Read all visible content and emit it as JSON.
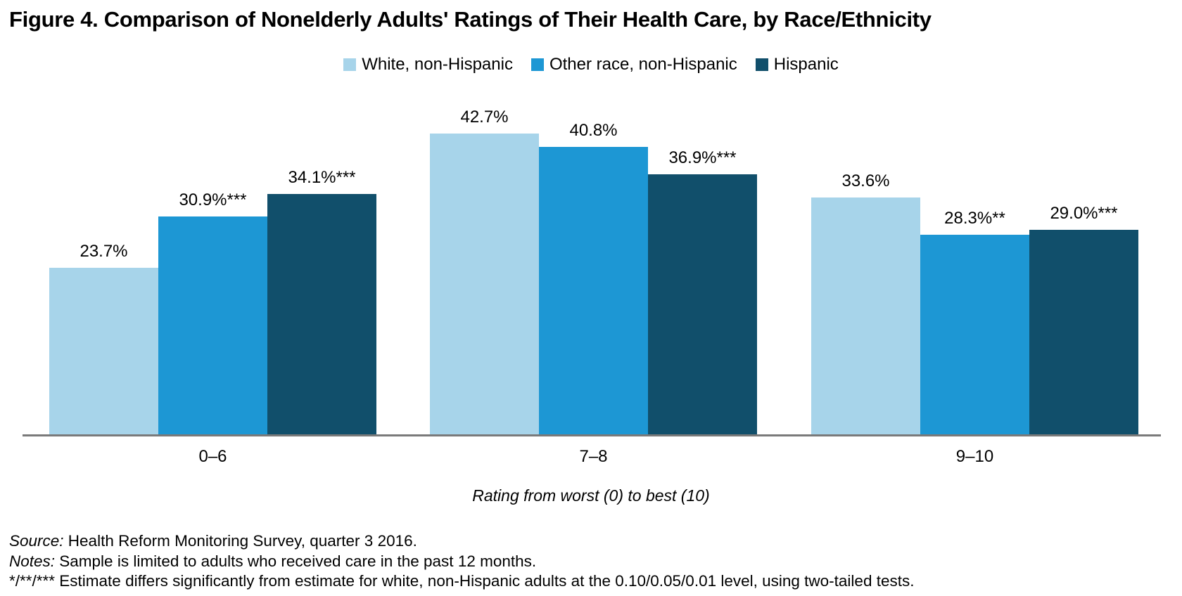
{
  "title": "Figure 4. Comparison of Nonelderly Adults' Ratings of Their Health Care, by Race/Ethnicity",
  "chart_data": {
    "type": "bar",
    "title": "Figure 4. Comparison of Nonelderly Adults' Ratings of Their Health Care, by Race/Ethnicity",
    "categories": [
      "0–6",
      "7–8",
      "9–10"
    ],
    "series": [
      {
        "name": "White, non-Hispanic",
        "color": "#a7d4ea",
        "values": [
          23.7,
          42.7,
          33.6
        ],
        "labels": [
          "23.7%",
          "42.7%",
          "33.6%"
        ]
      },
      {
        "name": "Other race, non-Hispanic",
        "color": "#1d97d4",
        "values": [
          30.9,
          40.8,
          28.3
        ],
        "labels": [
          "30.9%***",
          "40.8%",
          "28.3%**"
        ]
      },
      {
        "name": "Hispanic",
        "color": "#114f6b",
        "values": [
          34.1,
          36.9,
          29.0
        ],
        "labels": [
          "34.1%***",
          "36.9%***",
          "29.0%***"
        ]
      }
    ],
    "xlabel": "Rating from worst (0) to best (10)",
    "ylabel": "",
    "ylim": [
      0,
      50
    ],
    "grid": false,
    "legend_position": "top",
    "axis_line_color": "#7a7a7a",
    "data_labels_shown": true
  },
  "notes": {
    "source_label": "Source:",
    "source_text": " Health Reform Monitoring Survey, quarter 3 2016.",
    "notes_label": "Notes:",
    "notes_text": " Sample is limited to adults who received care in the past 12 months.",
    "significance": "*/**/*** Estimate differs significantly from estimate for white, non-Hispanic adults at the 0.10/0.05/0.01 level, using two-tailed tests."
  }
}
